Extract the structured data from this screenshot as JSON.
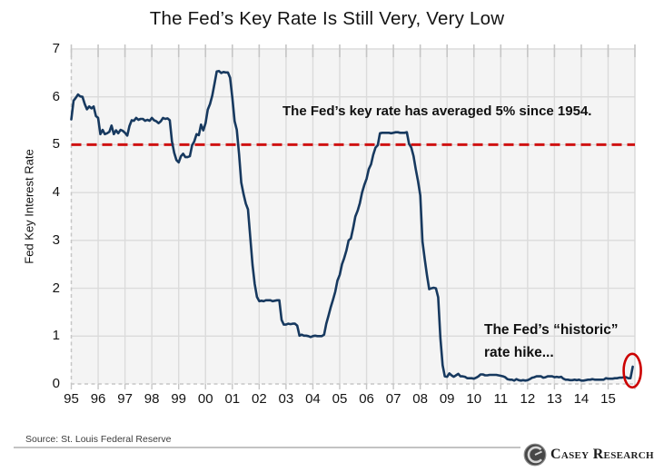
{
  "title": "The Fed’s Key Rate Is Still Very, Very Low",
  "annotations": {
    "average": "The Fed’s key rate has averaged 5% since 1954.",
    "historic": "The Fed’s “historic”\nrate hike..."
  },
  "source": "Source: St. Louis Federal Reserve",
  "logo": {
    "icon": "casey-globe-icon",
    "text": "Casey Research"
  },
  "colors": {
    "line": "#17395f",
    "reference_red": "#cf1212",
    "ellipse_red": "#cc0000",
    "grid": "#dbdbdb",
    "plot_bg": "#f4f4f4",
    "border_dash": "#c6c6c6",
    "tick_mark": "#c5c5c5"
  },
  "chart_data": {
    "type": "line",
    "title": "The Fed’s Key Rate Is Still Very, Very Low",
    "xlabel": "",
    "ylabel": "Fed Key Interest Rate",
    "ylim": [
      0,
      7
    ],
    "y_ticks": [
      0,
      1,
      2,
      3,
      4,
      5,
      6,
      7
    ],
    "x_start_year": 1995,
    "x_end_year": 2016,
    "x_tick_labels": [
      "95",
      "96",
      "97",
      "98",
      "99",
      "00",
      "01",
      "02",
      "03",
      "04",
      "05",
      "06",
      "07",
      "08",
      "09",
      "10",
      "11",
      "12",
      "13",
      "14",
      "15"
    ],
    "grid": true,
    "legend": "none",
    "reference_line": {
      "value": 5,
      "style": "dashed",
      "label": "The Fed’s key rate has averaged 5% since 1954."
    },
    "highlight": {
      "shape": "ellipse",
      "x_year": 2015.9,
      "y_value": 0.25,
      "note": "The Fed’s “historic” rate hike..."
    },
    "series": [
      {
        "name": "Fed key interest rate",
        "frequency": "monthly",
        "start_year": 1995,
        "values": [
          5.53,
          5.92,
          5.98,
          6.05,
          6.01,
          6.0,
          5.85,
          5.74,
          5.8,
          5.76,
          5.8,
          5.6,
          5.56,
          5.22,
          5.31,
          5.22,
          5.24,
          5.27,
          5.4,
          5.22,
          5.3,
          5.24,
          5.31,
          5.29,
          5.25,
          5.19,
          5.39,
          5.51,
          5.5,
          5.56,
          5.52,
          5.54,
          5.54,
          5.5,
          5.52,
          5.5,
          5.56,
          5.51,
          5.49,
          5.45,
          5.49,
          5.56,
          5.54,
          5.55,
          5.51,
          5.07,
          4.83,
          4.68,
          4.63,
          4.76,
          4.81,
          4.74,
          4.74,
          4.76,
          4.99,
          5.07,
          5.22,
          5.2,
          5.42,
          5.3,
          5.45,
          5.73,
          5.85,
          6.02,
          6.27,
          6.53,
          6.54,
          6.5,
          6.52,
          6.51,
          6.51,
          6.4,
          5.98,
          5.49,
          5.31,
          4.8,
          4.21,
          3.97,
          3.77,
          3.65,
          3.07,
          2.49,
          2.09,
          1.82,
          1.73,
          1.74,
          1.73,
          1.75,
          1.75,
          1.75,
          1.73,
          1.74,
          1.75,
          1.75,
          1.34,
          1.24,
          1.24,
          1.26,
          1.25,
          1.26,
          1.26,
          1.22,
          1.01,
          1.03,
          1.01,
          1.01,
          1.0,
          0.98,
          1.0,
          1.01,
          1.0,
          1.0,
          1.0,
          1.03,
          1.26,
          1.43,
          1.61,
          1.76,
          1.93,
          2.16,
          2.28,
          2.5,
          2.63,
          2.79,
          3.0,
          3.04,
          3.26,
          3.5,
          3.62,
          3.78,
          4.0,
          4.16,
          4.29,
          4.49,
          4.59,
          4.79,
          4.94,
          4.99,
          5.24,
          5.25,
          5.25,
          5.25,
          5.25,
          5.24,
          5.25,
          5.26,
          5.26,
          5.25,
          5.25,
          5.25,
          5.26,
          5.02,
          4.94,
          4.76,
          4.49,
          4.24,
          3.94,
          2.98,
          2.61,
          2.28,
          1.98,
          2.0,
          2.01,
          2.0,
          1.81,
          0.97,
          0.39,
          0.16,
          0.15,
          0.22,
          0.18,
          0.15,
          0.18,
          0.21,
          0.16,
          0.16,
          0.15,
          0.12,
          0.12,
          0.12,
          0.11,
          0.13,
          0.16,
          0.2,
          0.2,
          0.18,
          0.18,
          0.19,
          0.19,
          0.19,
          0.19,
          0.18,
          0.17,
          0.16,
          0.14,
          0.1,
          0.09,
          0.09,
          0.07,
          0.1,
          0.08,
          0.07,
          0.08,
          0.07,
          0.08,
          0.1,
          0.13,
          0.14,
          0.16,
          0.16,
          0.16,
          0.13,
          0.14,
          0.16,
          0.16,
          0.16,
          0.14,
          0.15,
          0.14,
          0.15,
          0.11,
          0.09,
          0.09,
          0.08,
          0.08,
          0.09,
          0.08,
          0.09,
          0.07,
          0.07,
          0.08,
          0.09,
          0.09,
          0.1,
          0.09,
          0.09,
          0.09,
          0.09,
          0.09,
          0.12,
          0.11,
          0.11,
          0.11,
          0.12,
          0.12,
          0.13,
          0.13,
          0.14,
          0.14,
          0.12,
          0.12,
          0.36
        ]
      }
    ]
  }
}
